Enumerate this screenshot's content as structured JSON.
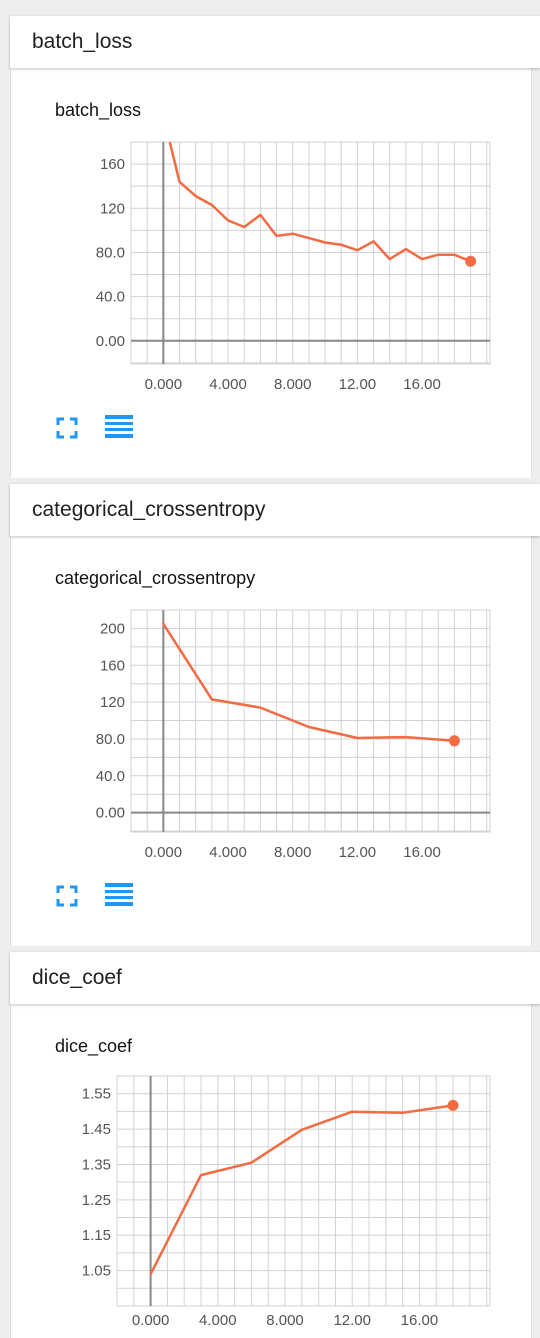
{
  "colors": {
    "series": "#f26b43",
    "icon": "#2196f3"
  },
  "sections": [
    {
      "header_title": "batch_loss",
      "icons": [
        "fullscreen-icon",
        "data-table-icon"
      ],
      "chart_data": {
        "type": "line",
        "title": "batch_loss",
        "xlabel": "",
        "ylabel": "",
        "x": [
          0.4,
          1,
          2,
          3,
          4,
          5,
          6,
          7,
          8,
          9,
          10,
          11,
          12,
          13,
          14,
          15,
          16,
          17,
          18,
          19
        ],
        "y": [
          180,
          144,
          131,
          123,
          109,
          103,
          114,
          95,
          97,
          93,
          89,
          87,
          82,
          90,
          74,
          83,
          74,
          78,
          78,
          72
        ],
        "xlim": [
          -2,
          20.2
        ],
        "ylim": [
          -21,
          180
        ],
        "yticks": [
          0,
          40,
          80,
          120,
          160
        ],
        "ytick_labels": [
          "0.00",
          "40.0",
          "80.0",
          "120",
          "160"
        ],
        "xticks": [
          0,
          4,
          8,
          12,
          16
        ],
        "xtick_labels": [
          "0.000",
          "4.000",
          "8.000",
          "12.00",
          "16.00"
        ],
        "x_grid_step": 1,
        "y_grid_step": 20,
        "grid": true
      }
    },
    {
      "header_title": "categorical_crossentropy",
      "icons": [
        "fullscreen-icon",
        "data-table-icon"
      ],
      "chart_data": {
        "type": "line",
        "title": "categorical_crossentropy",
        "xlabel": "",
        "ylabel": "",
        "x": [
          0,
          3,
          6,
          9,
          12,
          15,
          18
        ],
        "y": [
          205,
          123,
          114,
          93,
          81,
          82,
          78
        ],
        "xlim": [
          -2,
          20.2
        ],
        "ylim": [
          -21,
          220
        ],
        "yticks": [
          0,
          40,
          80,
          120,
          160,
          200
        ],
        "ytick_labels": [
          "0.00",
          "40.0",
          "80.0",
          "120",
          "160",
          "200"
        ],
        "xticks": [
          0,
          4,
          8,
          12,
          16
        ],
        "xtick_labels": [
          "0.000",
          "4.000",
          "8.000",
          "12.00",
          "16.00"
        ],
        "x_grid_step": 1,
        "y_grid_step": 20,
        "grid": true
      }
    },
    {
      "header_title": "dice_coef",
      "icons": [],
      "chart_data": {
        "type": "line",
        "title": "dice_coef",
        "xlabel": "",
        "ylabel": "",
        "x": [
          0,
          3,
          6,
          9,
          12,
          15,
          18
        ],
        "y": [
          1.04,
          1.32,
          1.355,
          1.448,
          1.499,
          1.496,
          1.517
        ],
        "xlim": [
          -2,
          20.2
        ],
        "ylim": [
          0.95,
          1.6
        ],
        "yticks": [
          1.05,
          1.15,
          1.25,
          1.35,
          1.45,
          1.55
        ],
        "ytick_labels": [
          "1.05",
          "1.15",
          "1.25",
          "1.35",
          "1.45",
          "1.55"
        ],
        "xticks": [
          0,
          4,
          8,
          12,
          16
        ],
        "xtick_labels": [
          "0.000",
          "4.000",
          "8.000",
          "12.00",
          "16.00"
        ],
        "x_grid_step": 1,
        "y_grid_step": 0.05,
        "grid": true
      }
    }
  ]
}
